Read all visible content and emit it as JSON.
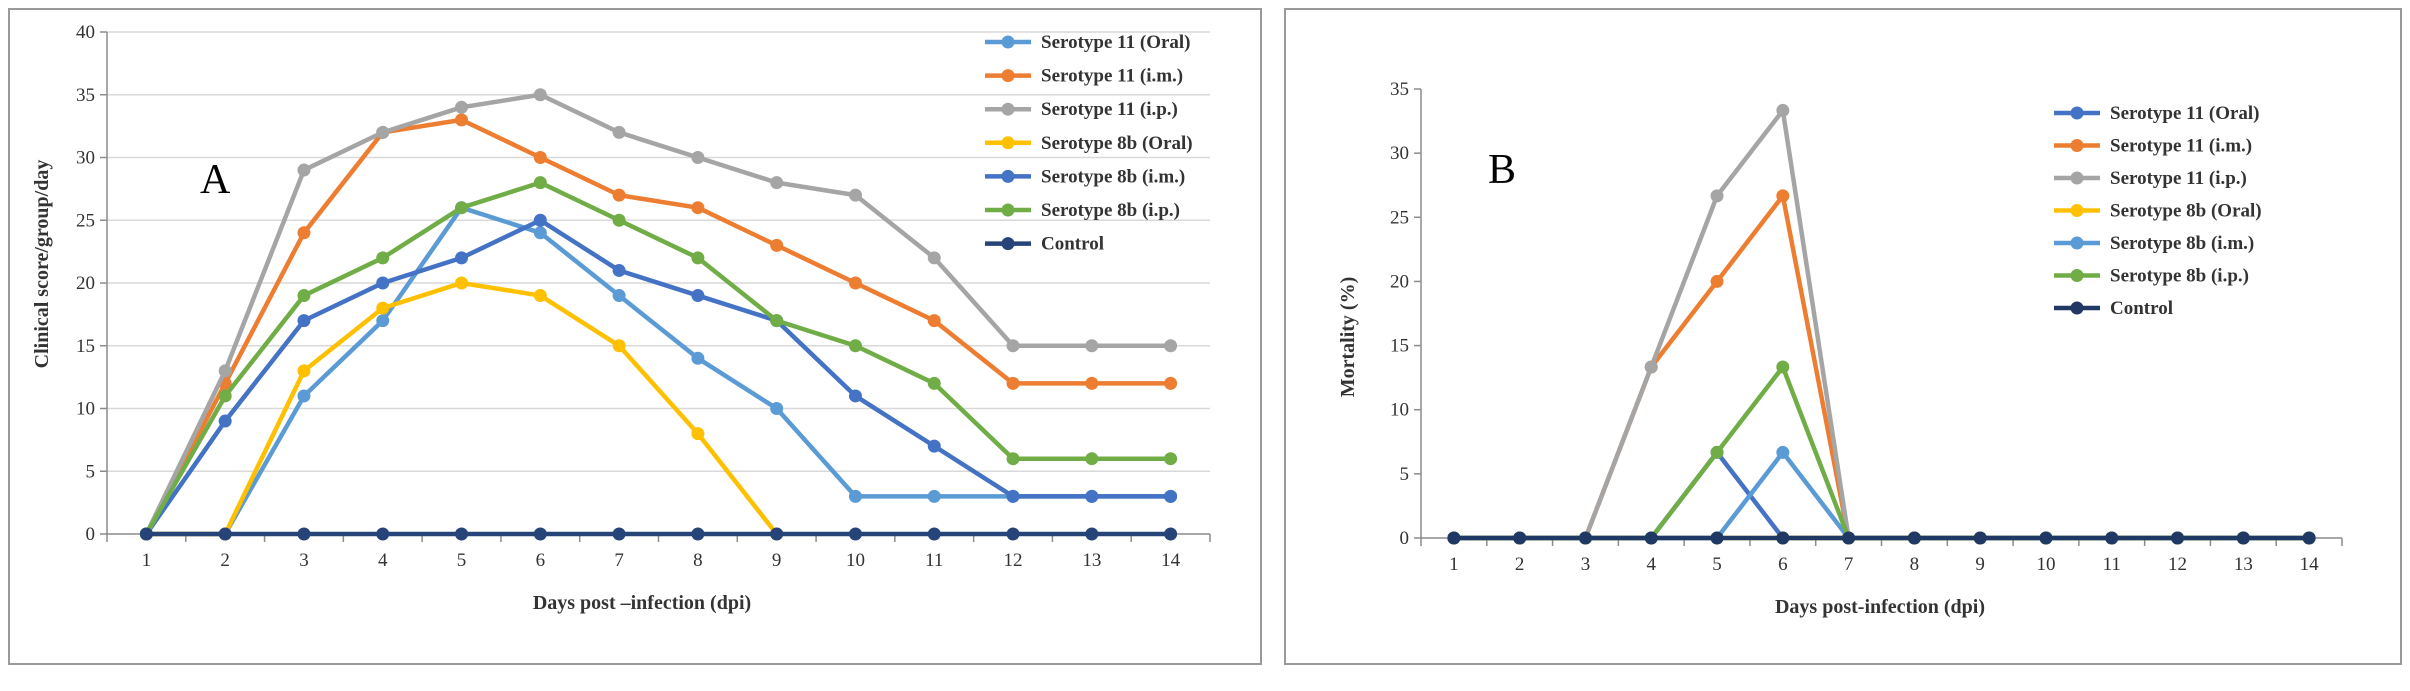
{
  "chart_data": [
    {
      "type": "line",
      "panel_label": "A",
      "xlabel": "Days post –infection (dpi)",
      "ylabel": "Clinical score/group/day",
      "x": [
        1,
        2,
        3,
        4,
        5,
        6,
        7,
        8,
        9,
        10,
        11,
        12,
        13,
        14
      ],
      "ylim": [
        0,
        40
      ],
      "yticks": [
        0,
        5,
        10,
        15,
        20,
        25,
        30,
        35,
        40
      ],
      "grid": "horizontal",
      "legend_position": "top-right",
      "series": [
        {
          "name": "Serotype 11 (Oral)",
          "color": "#5B9BD5",
          "values": [
            0,
            0,
            11,
            17,
            26,
            24,
            19,
            14,
            10,
            3,
            3,
            3,
            3,
            3
          ]
        },
        {
          "name": "Serotype 11 (i.m.)",
          "color": "#ED7D31",
          "values": [
            0,
            12,
            24,
            32,
            33,
            30,
            27,
            26,
            23,
            20,
            17,
            12,
            12,
            12
          ]
        },
        {
          "name": "Serotype 11 (i.p.)",
          "color": "#A5A5A5",
          "values": [
            0,
            13,
            29,
            32,
            34,
            35,
            32,
            30,
            28,
            27,
            22,
            15,
            15,
            15
          ]
        },
        {
          "name": "Serotype 8b (Oral)",
          "color": "#FFC000",
          "values": [
            0,
            0,
            13,
            18,
            20,
            19,
            15,
            8,
            0,
            null,
            null,
            null,
            null,
            null
          ]
        },
        {
          "name": "Serotype 8b (i.m.)",
          "color": "#4472C4",
          "values": [
            0,
            9,
            17,
            20,
            22,
            25,
            21,
            19,
            17,
            11,
            7,
            3,
            3,
            3
          ]
        },
        {
          "name": "Serotype 8b (i.p.)",
          "color": "#70AD47",
          "values": [
            0,
            11,
            19,
            22,
            26,
            28,
            25,
            22,
            17,
            15,
            12,
            6,
            6,
            6
          ]
        },
        {
          "name": "Control",
          "color": "#264478",
          "values": [
            0,
            0,
            0,
            0,
            0,
            0,
            0,
            0,
            0,
            0,
            0,
            0,
            0,
            0
          ]
        }
      ]
    },
    {
      "type": "line",
      "panel_label": "B",
      "xlabel": "Days post-infection (dpi)",
      "ylabel": "Mortality (%)",
      "x": [
        1,
        2,
        3,
        4,
        5,
        6,
        7,
        8,
        9,
        10,
        11,
        12,
        13,
        14
      ],
      "ylim": [
        0,
        35
      ],
      "yticks": [
        0,
        5,
        10,
        15,
        20,
        25,
        30,
        35
      ],
      "grid": "none",
      "legend_position": "right",
      "series": [
        {
          "name": "Serotype 11 (Oral)",
          "color": "#4472C4",
          "values": [
            0,
            0,
            0,
            0,
            6.67,
            0,
            0,
            0,
            0,
            0,
            0,
            0,
            0,
            0
          ]
        },
        {
          "name": "Serotype 11 (i.m.)",
          "color": "#ED7D31",
          "values": [
            0,
            0,
            0,
            13.33,
            20,
            26.67,
            0,
            0,
            0,
            0,
            0,
            0,
            0,
            0
          ]
        },
        {
          "name": "Serotype 11 (i.p.)",
          "color": "#A5A5A5",
          "values": [
            0,
            0,
            0,
            13.33,
            26.67,
            33.33,
            0,
            0,
            0,
            0,
            0,
            0,
            0,
            0
          ]
        },
        {
          "name": "Serotype 8b (Oral)",
          "color": "#FFC000",
          "values": [
            0,
            0,
            0,
            0,
            0,
            0,
            0,
            0,
            0,
            0,
            0,
            0,
            0,
            0
          ]
        },
        {
          "name": "Serotype 8b (i.m.)",
          "color": "#5B9BD5",
          "values": [
            0,
            0,
            0,
            0,
            0,
            6.67,
            0,
            0,
            0,
            0,
            0,
            0,
            0,
            0
          ]
        },
        {
          "name": "Serotype 8b (i.p.)",
          "color": "#70AD47",
          "values": [
            0,
            0,
            0,
            0,
            6.67,
            13.33,
            0,
            0,
            0,
            0,
            0,
            0,
            0,
            0
          ]
        },
        {
          "name": "Control",
          "color": "#1F3864",
          "values": [
            0,
            0,
            0,
            0,
            0,
            0,
            0,
            0,
            0,
            0,
            0,
            0,
            0,
            0
          ]
        }
      ]
    }
  ]
}
